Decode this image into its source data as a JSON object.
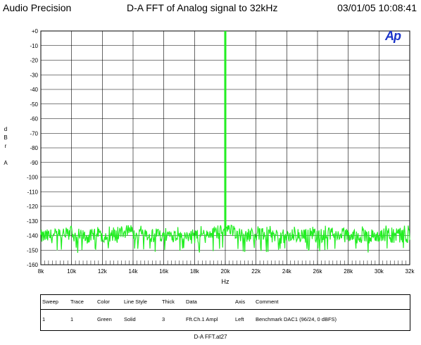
{
  "header": {
    "left": "Audio Precision",
    "center": "D-A FFT of Analog signal to 32kHz",
    "right": "03/01/05 10:08:41"
  },
  "logo": "Ap",
  "colors": {
    "trace": "#22ee22",
    "grid": "#000000",
    "logo": "#1a33c9"
  },
  "chart_data": {
    "type": "line",
    "title": "D-A FFT of Analog signal to 32kHz",
    "xlabel": "Hz",
    "ylabel_chars": [
      "d",
      "B",
      "r",
      "",
      "A"
    ],
    "xlim": [
      8000,
      32000
    ],
    "ylim": [
      -160,
      0
    ],
    "x_ticks": [
      "8k",
      "10k",
      "12k",
      "14k",
      "16k",
      "18k",
      "20k",
      "22k",
      "24k",
      "26k",
      "28k",
      "30k",
      "32k"
    ],
    "y_ticks": [
      "+0",
      "-10",
      "-20",
      "-30",
      "-40",
      "-50",
      "-60",
      "-70",
      "-80",
      "-90",
      "-100",
      "-110",
      "-120",
      "-130",
      "-140",
      "-150",
      "-160"
    ],
    "grid": true,
    "series": [
      {
        "color": "Green",
        "tone": {
          "x": 20000,
          "y": 0
        },
        "noise_floor": {
          "mean": -140,
          "low": -152,
          "high": -133
        },
        "x": [
          8000,
          9000,
          10000,
          11000,
          12000,
          13000,
          13900,
          14000,
          15000,
          16000,
          17000,
          18000,
          19000,
          19800,
          20000,
          20200,
          21000,
          22000,
          23000,
          24000,
          25000,
          26000,
          27000,
          28000,
          29000,
          30000,
          31000,
          32000
        ],
        "y": [
          -141,
          -140,
          -139,
          -141,
          -140,
          -140,
          -134,
          -140,
          -141,
          -139,
          -140,
          -141,
          -140,
          -136,
          0,
          -134,
          -140,
          -139,
          -140,
          -141,
          -140,
          -140,
          -139,
          -140,
          -141,
          -140,
          -140,
          -141
        ]
      }
    ]
  },
  "legend": {
    "headers": [
      "Sweep",
      "Trace",
      "Color",
      "Line Style",
      "Thick",
      "Data",
      "Axis",
      "Comment"
    ],
    "rows": [
      [
        "1",
        "1",
        "Green",
        "Solid",
        "3",
        "Fft.Ch.1 Ampl",
        "Left",
        "Benchmark DAC1 (96/24, 0 dBFS)"
      ]
    ]
  },
  "footer": "D-A FFT.at27"
}
